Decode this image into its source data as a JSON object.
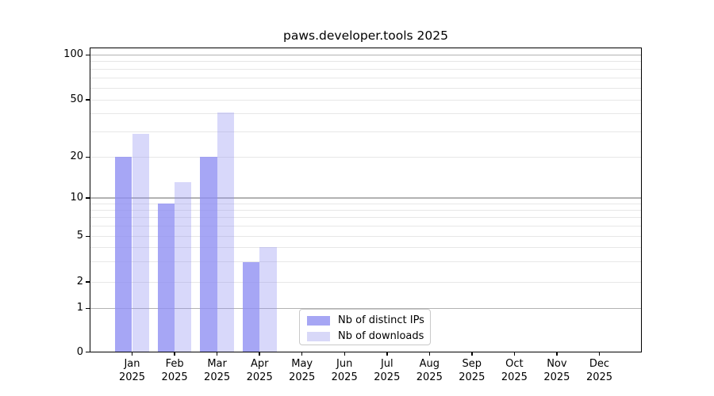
{
  "title": "paws.developer.tools 2025",
  "legend": {
    "items": [
      {
        "label": "Nb of distinct IPs",
        "swatch_color": "#a6a6f4"
      },
      {
        "label": "Nb of downloads",
        "swatch_color": "#d8d8f8"
      }
    ]
  },
  "y_axis": {
    "ticks": [
      {
        "label": "100",
        "value": 100
      },
      {
        "label": "50",
        "value": 50
      },
      {
        "label": "20",
        "value": 20
      },
      {
        "label": "10",
        "value": 10
      },
      {
        "label": "5",
        "value": 5
      },
      {
        "label": "2",
        "value": 2
      },
      {
        "label": "1",
        "value": 1
      },
      {
        "label": "0",
        "value": 0
      }
    ]
  },
  "x_axis": {
    "ticks": [
      {
        "month": "Jan",
        "year": "2025"
      },
      {
        "month": "Feb",
        "year": "2025"
      },
      {
        "month": "Mar",
        "year": "2025"
      },
      {
        "month": "Apr",
        "year": "2025"
      },
      {
        "month": "May",
        "year": "2025"
      },
      {
        "month": "Jun",
        "year": "2025"
      },
      {
        "month": "Jul",
        "year": "2025"
      },
      {
        "month": "Aug",
        "year": "2025"
      },
      {
        "month": "Sep",
        "year": "2025"
      },
      {
        "month": "Oct",
        "year": "2025"
      },
      {
        "month": "Nov",
        "year": "2025"
      },
      {
        "month": "Dec",
        "year": "2025"
      }
    ]
  },
  "chart_data": {
    "type": "bar",
    "title": "paws.developer.tools 2025",
    "categories": [
      "Jan 2025",
      "Feb 2025",
      "Mar 2025",
      "Apr 2025",
      "May 2025",
      "Jun 2025",
      "Jul 2025",
      "Aug 2025",
      "Sep 2025",
      "Oct 2025",
      "Nov 2025",
      "Dec 2025"
    ],
    "series": [
      {
        "name": "Nb of distinct IPs",
        "color": "rgba(144,144,242,0.8)",
        "values": [
          20,
          9,
          20,
          3,
          0,
          0,
          0,
          0,
          0,
          0,
          0,
          0
        ]
      },
      {
        "name": "Nb of downloads",
        "color": "rgba(144,144,242,0.35)",
        "values": [
          29,
          13,
          41,
          4,
          0,
          0,
          0,
          0,
          0,
          0,
          0,
          0
        ]
      }
    ],
    "xlabel": "",
    "ylabel": "",
    "y_scale": "log-like (compressed near zero), labeled ticks 0,1,2,5,10,20,50,100",
    "y_tick_values": [
      0,
      1,
      2,
      5,
      10,
      20,
      50,
      100
    ],
    "y_major_gridlines": [
      1,
      10,
      100
    ],
    "y_minor_gridlines": [
      2,
      3,
      4,
      5,
      6,
      7,
      8,
      9,
      20,
      30,
      40,
      50,
      60,
      70,
      80,
      90
    ],
    "ylim": [
      0,
      112
    ],
    "grid": true,
    "legend_position": "lower center inside axes"
  },
  "colors": {
    "bar_ips": "rgba(144,144,242,0.8)",
    "bar_downloads": "rgba(144,144,242,0.35)",
    "legend_swatch_ips": "#a6a6f4",
    "legend_swatch_downloads": "#d8d8f8",
    "major_grid": "#b2b2b2",
    "minor_grid": "#e7e7e7",
    "spine": "#000000",
    "text": "#000000",
    "background": "#ffffff"
  }
}
